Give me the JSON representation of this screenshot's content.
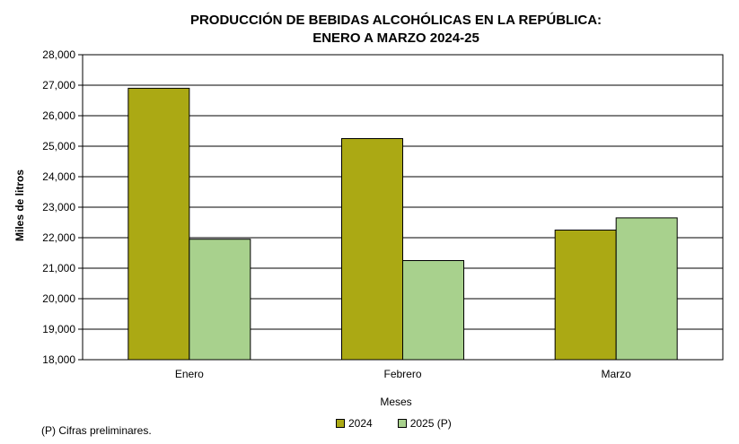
{
  "chart_data": {
    "type": "bar",
    "title": "PRODUCCIÓN DE BEBIDAS ALCOHÓLICAS EN LA REPÚBLICA:",
    "subtitle": "ENERO A MARZO  2024-25",
    "xlabel": "Meses",
    "ylabel": "Miles de litros",
    "ylim": [
      18000,
      28000
    ],
    "yticks": [
      18000,
      19000,
      20000,
      21000,
      22000,
      23000,
      24000,
      25000,
      26000,
      27000,
      28000
    ],
    "ytick_labels": [
      "18,000",
      "19,000",
      "20,000",
      "21,000",
      "22,000",
      "23,000",
      "24,000",
      "25,000",
      "26,000",
      "27,000",
      "28,000"
    ],
    "categories": [
      "Enero",
      "Febrero",
      "Marzo"
    ],
    "series": [
      {
        "name": "2024",
        "color": "#ABA914",
        "values": [
          26900,
          25250,
          22250
        ]
      },
      {
        "name": "2025 (P)",
        "color": "#A8D18D",
        "values": [
          21950,
          21250,
          22650
        ]
      }
    ],
    "grid": true,
    "legend": "bottom"
  },
  "footnote": "(P) Cifras  preliminares."
}
